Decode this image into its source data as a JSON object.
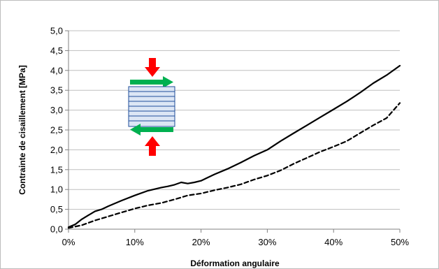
{
  "chart_data": {
    "type": "line",
    "title": "",
    "xlabel": "Déformation angulaire",
    "ylabel": "Contrainte de cisaillement  [MPa]",
    "xlim": [
      0,
      50
    ],
    "ylim": [
      0,
      5
    ],
    "x_ticks": [
      "0%",
      "10%",
      "20%",
      "30%",
      "40%",
      "50%"
    ],
    "y_ticks": [
      "0,0",
      "0,5",
      "1,0",
      "1,5",
      "2,0",
      "2,5",
      "3,0",
      "3,5",
      "4,0",
      "4,5",
      "5,0"
    ],
    "grid": {
      "horizontal": true,
      "vertical": false
    },
    "legend": "none",
    "series": [
      {
        "style": "solid",
        "color": "#000000",
        "x": [
          0,
          1,
          2,
          3,
          4,
          5,
          6,
          8,
          10,
          12,
          14,
          15,
          16,
          17,
          18,
          19,
          20,
          22,
          24,
          26,
          28,
          30,
          32,
          34,
          36,
          38,
          40,
          42,
          44,
          46,
          48,
          50
        ],
        "y": [
          0.05,
          0.12,
          0.25,
          0.35,
          0.45,
          0.5,
          0.58,
          0.72,
          0.85,
          0.97,
          1.05,
          1.08,
          1.12,
          1.18,
          1.15,
          1.18,
          1.22,
          1.38,
          1.52,
          1.68,
          1.85,
          2.0,
          2.22,
          2.42,
          2.62,
          2.82,
          3.02,
          3.22,
          3.44,
          3.68,
          3.88,
          4.12
        ]
      },
      {
        "style": "dashed",
        "color": "#000000",
        "x": [
          0,
          2,
          4,
          6,
          8,
          10,
          12,
          14,
          16,
          18,
          20,
          22,
          24,
          26,
          28,
          30,
          32,
          34,
          36,
          38,
          40,
          42,
          44,
          46,
          48,
          50
        ],
        "y": [
          0.03,
          0.1,
          0.22,
          0.32,
          0.42,
          0.52,
          0.6,
          0.66,
          0.75,
          0.85,
          0.9,
          0.98,
          1.05,
          1.13,
          1.25,
          1.35,
          1.48,
          1.65,
          1.8,
          1.95,
          2.08,
          2.22,
          2.42,
          2.62,
          2.8,
          3.18
        ]
      }
    ]
  },
  "diagram": {
    "description_icon": "specimen-shear-arrows-icon",
    "colors": {
      "compression": "#ff0000",
      "shear": "#00b050",
      "specimen": "#1f4e9a",
      "specimen_fill": "#dce6f5"
    }
  }
}
